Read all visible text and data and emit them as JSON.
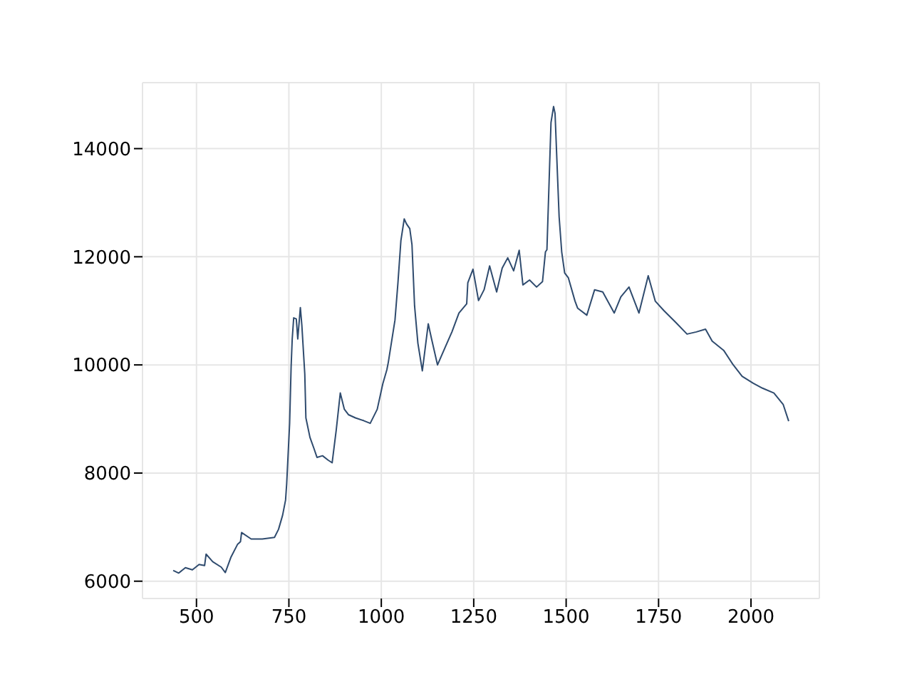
{
  "chart_data": {
    "type": "line",
    "x": [
      437,
      452,
      470,
      489,
      507,
      522,
      526,
      544,
      567,
      578,
      593,
      611,
      619,
      622,
      648,
      678,
      711,
      722,
      733,
      741,
      744,
      752,
      756,
      759,
      763,
      770,
      774,
      781,
      785,
      793,
      796,
      807,
      818,
      826,
      841,
      856,
      867,
      878,
      889,
      900,
      911,
      930,
      952,
      970,
      989,
      1004,
      1015,
      1019,
      1037,
      1045,
      1053,
      1062,
      1068,
      1077,
      1083,
      1090,
      1099,
      1111,
      1127,
      1136,
      1152,
      1173,
      1191,
      1210,
      1231,
      1234,
      1248,
      1263,
      1278,
      1293,
      1312,
      1327,
      1342,
      1358,
      1373,
      1383,
      1401,
      1420,
      1436,
      1444,
      1448,
      1459,
      1466,
      1470,
      1481,
      1488,
      1496,
      1506,
      1524,
      1531,
      1556,
      1577,
      1599,
      1630,
      1648,
      1670,
      1697,
      1722,
      1741,
      1765,
      1796,
      1827,
      1852,
      1877,
      1895,
      1926,
      1951,
      1976,
      2006,
      2031,
      2062,
      2087,
      2102
    ],
    "series": [
      {
        "color": "#2f4b6e",
        "values": [
          6200,
          6150,
          6250,
          6210,
          6310,
          6290,
          6500,
          6360,
          6260,
          6160,
          6440,
          6680,
          6730,
          6900,
          6780,
          6780,
          6810,
          6960,
          7220,
          7500,
          7800,
          8920,
          9960,
          10480,
          10870,
          10850,
          10480,
          11060,
          10740,
          9830,
          9020,
          8660,
          8450,
          8290,
          8320,
          8240,
          8190,
          8790,
          9480,
          9180,
          9080,
          9020,
          8970,
          8920,
          9180,
          9650,
          9910,
          10050,
          10830,
          11520,
          12300,
          12700,
          12610,
          12520,
          12220,
          11090,
          10400,
          9890,
          10760,
          10480,
          10000,
          10330,
          10610,
          10960,
          11130,
          11520,
          11770,
          11190,
          11390,
          11830,
          11350,
          11790,
          11980,
          11740,
          12120,
          11480,
          11570,
          11440,
          11540,
          12090,
          12130,
          14480,
          14780,
          14650,
          12740,
          12090,
          11700,
          11610,
          11180,
          11050,
          10920,
          11390,
          11350,
          10960,
          11260,
          11440,
          10960,
          11650,
          11180,
          11000,
          10790,
          10570,
          10610,
          10660,
          10440,
          10270,
          10010,
          9790,
          9660,
          9570,
          9480,
          9270,
          8960
        ]
      }
    ],
    "xlim": [
      354,
      2185
    ],
    "xticks": [
      500,
      750,
      1000,
      1250,
      1500,
      1750,
      2000
    ],
    "ylim": [
      5680,
      15220
    ],
    "yticks": [
      6000,
      8000,
      10000,
      12000,
      14000
    ],
    "grid": true,
    "legend": false
  }
}
